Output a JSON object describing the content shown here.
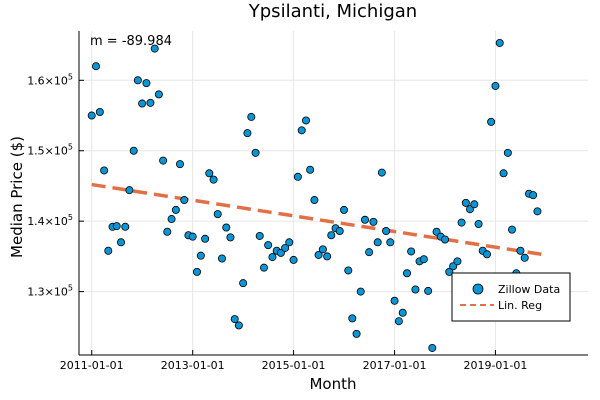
{
  "chart_data": {
    "type": "scatter",
    "title": "Ypsilanti, Michigan",
    "xlabel": "Month",
    "ylabel": "Median Price ($)",
    "annotation": "m = -89.984",
    "x_range": [
      "2010-10-01",
      "2020-11-01"
    ],
    "ylim": [
      121000,
      167000
    ],
    "x_ticks": [
      "2011-01-01",
      "2013-01-01",
      "2015-01-01",
      "2017-01-01",
      "2019-01-01"
    ],
    "y_ticks": [
      {
        "value": 130000,
        "base": "1.3×10",
        "exp": "5"
      },
      {
        "value": 140000,
        "base": "1.4×10",
        "exp": "5"
      },
      {
        "value": 150000,
        "base": "1.5×10",
        "exp": "5"
      },
      {
        "value": 160000,
        "base": "1.6×10",
        "exp": "5"
      }
    ],
    "grid": true,
    "legend_position": "bottom-right",
    "series": [
      {
        "name": "Zillow Data",
        "color": "#0a96d6",
        "points": [
          [
            "2011-01-01",
            155000
          ],
          [
            "2011-02-01",
            162000
          ],
          [
            "2011-03-01",
            155500
          ],
          [
            "2011-04-01",
            147200
          ],
          [
            "2011-05-01",
            135800
          ],
          [
            "2011-06-01",
            139200
          ],
          [
            "2011-07-01",
            139300
          ],
          [
            "2011-08-01",
            137000
          ],
          [
            "2011-09-01",
            139200
          ],
          [
            "2011-10-01",
            144400
          ],
          [
            "2011-11-01",
            150000
          ],
          [
            "2011-12-01",
            160000
          ],
          [
            "2012-01-01",
            156700
          ],
          [
            "2012-02-01",
            159600
          ],
          [
            "2012-03-01",
            156800
          ],
          [
            "2012-04-01",
            164500
          ],
          [
            "2012-05-01",
            158000
          ],
          [
            "2012-06-01",
            148600
          ],
          [
            "2012-07-01",
            138500
          ],
          [
            "2012-08-01",
            140300
          ],
          [
            "2012-09-01",
            141600
          ],
          [
            "2012-10-01",
            148100
          ],
          [
            "2012-11-01",
            143000
          ],
          [
            "2012-12-01",
            138000
          ],
          [
            "2013-01-01",
            137800
          ],
          [
            "2013-02-01",
            132800
          ],
          [
            "2013-03-01",
            135100
          ],
          [
            "2013-04-01",
            137500
          ],
          [
            "2013-05-01",
            146800
          ],
          [
            "2013-06-01",
            145900
          ],
          [
            "2013-07-01",
            141000
          ],
          [
            "2013-08-01",
            134700
          ],
          [
            "2013-09-01",
            139100
          ],
          [
            "2013-10-01",
            137700
          ],
          [
            "2013-11-01",
            126100
          ],
          [
            "2013-12-01",
            125200
          ],
          [
            "2014-01-01",
            131200
          ],
          [
            "2014-02-01",
            152500
          ],
          [
            "2014-03-01",
            154800
          ],
          [
            "2014-04-01",
            149700
          ],
          [
            "2014-05-01",
            137900
          ],
          [
            "2014-06-01",
            133400
          ],
          [
            "2014-07-01",
            136600
          ],
          [
            "2014-08-01",
            134900
          ],
          [
            "2014-09-01",
            135800
          ],
          [
            "2014-10-01",
            135500
          ],
          [
            "2014-11-01",
            136200
          ],
          [
            "2014-12-01",
            137000
          ],
          [
            "2015-01-01",
            134500
          ],
          [
            "2015-02-01",
            146300
          ],
          [
            "2015-03-01",
            152900
          ],
          [
            "2015-04-01",
            154300
          ],
          [
            "2015-05-01",
            147300
          ],
          [
            "2015-06-01",
            143000
          ],
          [
            "2015-07-01",
            135200
          ],
          [
            "2015-08-01",
            136000
          ],
          [
            "2015-09-01",
            135000
          ],
          [
            "2015-10-01",
            138000
          ],
          [
            "2015-11-01",
            139000
          ],
          [
            "2015-12-01",
            138600
          ],
          [
            "2016-01-01",
            141600
          ],
          [
            "2016-02-01",
            133000
          ],
          [
            "2016-03-01",
            126200
          ],
          [
            "2016-04-01",
            124000
          ],
          [
            "2016-05-01",
            130000
          ],
          [
            "2016-06-01",
            140200
          ],
          [
            "2016-07-01",
            135600
          ],
          [
            "2016-08-01",
            139900
          ],
          [
            "2016-09-01",
            137000
          ],
          [
            "2016-10-01",
            146900
          ],
          [
            "2016-11-01",
            138600
          ],
          [
            "2016-12-01",
            137000
          ],
          [
            "2017-01-01",
            128700
          ],
          [
            "2017-02-01",
            125800
          ],
          [
            "2017-03-01",
            127000
          ],
          [
            "2017-04-01",
            132600
          ],
          [
            "2017-05-01",
            135700
          ],
          [
            "2017-06-01",
            130300
          ],
          [
            "2017-07-01",
            134300
          ],
          [
            "2017-08-01",
            134600
          ],
          [
            "2017-09-01",
            130100
          ],
          [
            "2017-10-01",
            122000
          ],
          [
            "2017-11-01",
            138500
          ],
          [
            "2017-12-01",
            137800
          ],
          [
            "2018-01-01",
            137400
          ],
          [
            "2018-02-01",
            132800
          ],
          [
            "2018-03-01",
            133600
          ],
          [
            "2018-04-01",
            134300
          ],
          [
            "2018-05-01",
            139800
          ],
          [
            "2018-06-01",
            142600
          ],
          [
            "2018-07-01",
            141700
          ],
          [
            "2018-08-01",
            142400
          ],
          [
            "2018-09-01",
            139600
          ],
          [
            "2018-10-01",
            135800
          ],
          [
            "2018-11-01",
            135300
          ],
          [
            "2018-12-01",
            154100
          ],
          [
            "2019-01-01",
            159200
          ],
          [
            "2019-02-01",
            165300
          ],
          [
            "2019-03-01",
            146800
          ],
          [
            "2019-04-01",
            149700
          ],
          [
            "2019-05-01",
            138800
          ],
          [
            "2019-06-01",
            132600
          ],
          [
            "2019-07-01",
            135800
          ],
          [
            "2019-08-01",
            134800
          ],
          [
            "2019-09-01",
            143900
          ],
          [
            "2019-10-01",
            143700
          ],
          [
            "2019-11-01",
            141400
          ]
        ]
      },
      {
        "name": "Lin. Reg",
        "color": "#e26f46",
        "line": [
          [
            "2011-01-01",
            145200
          ],
          [
            "2020-01-01",
            135200
          ]
        ]
      }
    ]
  }
}
